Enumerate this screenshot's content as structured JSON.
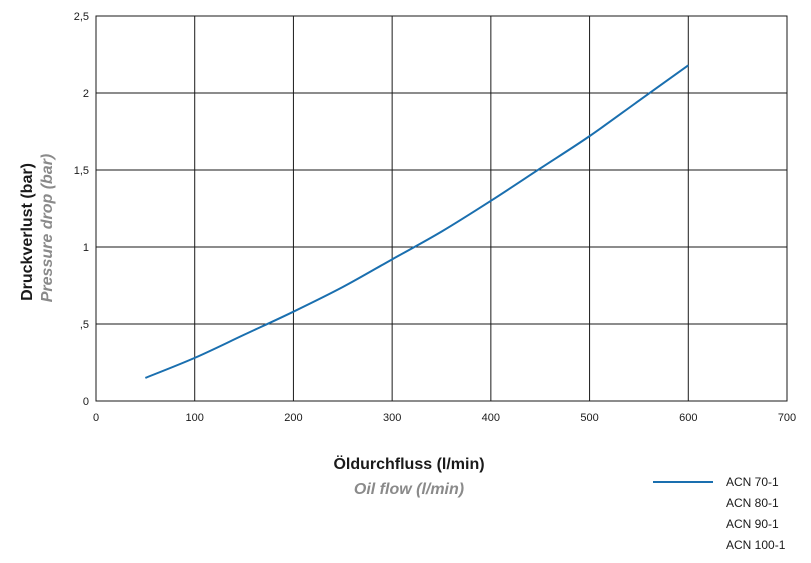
{
  "chart_data": {
    "type": "line",
    "xlabel": "Öldurchfluss (l/min)",
    "xlabel_en": "Oil flow (l/min)",
    "ylabel": "Druckverlust (bar)",
    "ylabel_en": "Pressure drop (bar)",
    "xlim": [
      0,
      700
    ],
    "ylim": [
      0,
      2.5
    ],
    "x_ticks": [
      "0",
      "100",
      "200",
      "300",
      "400",
      "500",
      "600",
      "700"
    ],
    "y_ticks": [
      "0",
      ",5",
      "1",
      "1,5",
      "2",
      "2,5"
    ],
    "grid": true,
    "legend_position": "bottom-right",
    "series": [
      {
        "name": "ACN 70-1",
        "color": "#1a6faf",
        "x": [
          50,
          100,
          150,
          200,
          250,
          300,
          350,
          400,
          450,
          500,
          550,
          600
        ],
        "y": [
          0.15,
          0.28,
          0.43,
          0.58,
          0.74,
          0.92,
          1.1,
          1.3,
          1.51,
          1.72,
          1.95,
          2.18
        ]
      }
    ],
    "legend_entries": [
      "ACN 70-1",
      "ACN 80-1",
      "ACN 90-1",
      "ACN 100-1"
    ]
  }
}
